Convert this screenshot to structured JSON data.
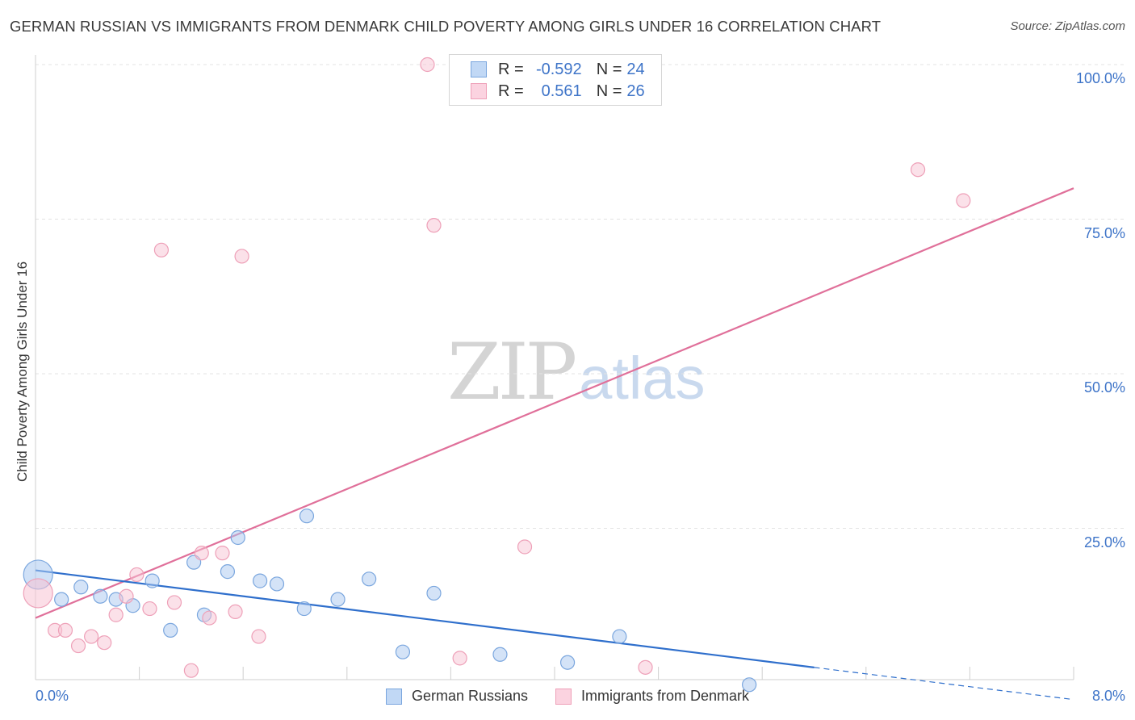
{
  "title": "GERMAN RUSSIAN VS IMMIGRANTS FROM DENMARK CHILD POVERTY AMONG GIRLS UNDER 16 CORRELATION CHART",
  "source": "Source: ZipAtlas.com",
  "watermark": {
    "zip": "ZIP",
    "atlas": "atlas"
  },
  "legend_top": [
    {
      "r_label": "R =",
      "r_value": "-0.592",
      "n_label": "N =",
      "n_value": "24",
      "color": "#a9c8f0",
      "border": "#7aa6de"
    },
    {
      "r_label": "R =",
      "r_value": "0.561",
      "n_label": "N =",
      "n_value": "26",
      "color": "#f8c3d3",
      "border": "#eea0b8"
    }
  ],
  "chart_data": {
    "type": "scatter",
    "title": "GERMAN RUSSIAN VS IMMIGRANTS FROM DENMARK CHILD POVERTY AMONG GIRLS UNDER 16 CORRELATION CHART",
    "xlabel": "",
    "ylabel": "Child Poverty Among Girls Under 16",
    "xlim": [
      0,
      8
    ],
    "ylim": [
      0,
      100
    ],
    "x_tick_labels": [
      "0.0%",
      "8.0%"
    ],
    "y_ticks": [
      25,
      50,
      75,
      100
    ],
    "y_tick_labels": [
      "25.0%",
      "50.0%",
      "75.0%",
      "100.0%"
    ],
    "grid": true,
    "legend_position": "bottom",
    "series": [
      {
        "name": "German Russians",
        "color": "#a9c8f0",
        "edge": "#7aa6de",
        "line_color": "#2f6fcc",
        "points": [
          {
            "x": 0.02,
            "y": 17.5,
            "big": true
          },
          {
            "x": 0.2,
            "y": 13.5
          },
          {
            "x": 0.35,
            "y": 15.5
          },
          {
            "x": 0.5,
            "y": 14.0
          },
          {
            "x": 0.62,
            "y": 13.5
          },
          {
            "x": 0.75,
            "y": 12.5
          },
          {
            "x": 0.9,
            "y": 16.5
          },
          {
            "x": 1.04,
            "y": 8.5
          },
          {
            "x": 1.22,
            "y": 19.5
          },
          {
            "x": 1.3,
            "y": 11.0
          },
          {
            "x": 1.48,
            "y": 18.0
          },
          {
            "x": 1.56,
            "y": 23.5
          },
          {
            "x": 1.73,
            "y": 16.5
          },
          {
            "x": 1.86,
            "y": 16.0
          },
          {
            "x": 2.07,
            "y": 12.0
          },
          {
            "x": 2.09,
            "y": 27.0
          },
          {
            "x": 2.33,
            "y": 13.5
          },
          {
            "x": 2.57,
            "y": 16.8
          },
          {
            "x": 2.83,
            "y": 5.0
          },
          {
            "x": 3.07,
            "y": 14.5
          },
          {
            "x": 3.58,
            "y": 4.6
          },
          {
            "x": 4.1,
            "y": 3.3
          },
          {
            "x": 4.5,
            "y": 7.5
          },
          {
            "x": 5.5,
            "y": -0.3
          }
        ],
        "trend": {
          "x0": 0,
          "y0": 18.2,
          "x1": 6.0,
          "y1": 2.5,
          "dash_to_x": 8.0,
          "dash_to_y": -2.7
        }
      },
      {
        "name": "Immigrants from Denmark",
        "color": "#f8c3d3",
        "edge": "#eea0b8",
        "line_color": "#e0709a",
        "points": [
          {
            "x": 0.02,
            "y": 14.5,
            "big": true
          },
          {
            "x": 0.15,
            "y": 8.5
          },
          {
            "x": 0.23,
            "y": 8.5
          },
          {
            "x": 0.33,
            "y": 6.0
          },
          {
            "x": 0.43,
            "y": 7.5
          },
          {
            "x": 0.53,
            "y": 6.5
          },
          {
            "x": 0.62,
            "y": 11.0
          },
          {
            "x": 0.7,
            "y": 14.0
          },
          {
            "x": 0.78,
            "y": 17.5
          },
          {
            "x": 0.88,
            "y": 12.0
          },
          {
            "x": 0.97,
            "y": 70.0
          },
          {
            "x": 1.07,
            "y": 13.0
          },
          {
            "x": 1.2,
            "y": 2.0
          },
          {
            "x": 1.28,
            "y": 21.0
          },
          {
            "x": 1.34,
            "y": 10.5
          },
          {
            "x": 1.44,
            "y": 21.0
          },
          {
            "x": 1.54,
            "y": 11.5
          },
          {
            "x": 1.59,
            "y": 69.0
          },
          {
            "x": 1.72,
            "y": 7.5
          },
          {
            "x": 3.02,
            "y": 100.0
          },
          {
            "x": 3.07,
            "y": 74.0
          },
          {
            "x": 3.27,
            "y": 4.0
          },
          {
            "x": 3.77,
            "y": 22.0
          },
          {
            "x": 4.7,
            "y": 2.5
          },
          {
            "x": 6.8,
            "y": 83.0
          },
          {
            "x": 7.15,
            "y": 78.0
          }
        ],
        "trend": {
          "x0": 0,
          "y0": 10.5,
          "x1": 8.0,
          "y1": 80.0
        }
      }
    ]
  }
}
